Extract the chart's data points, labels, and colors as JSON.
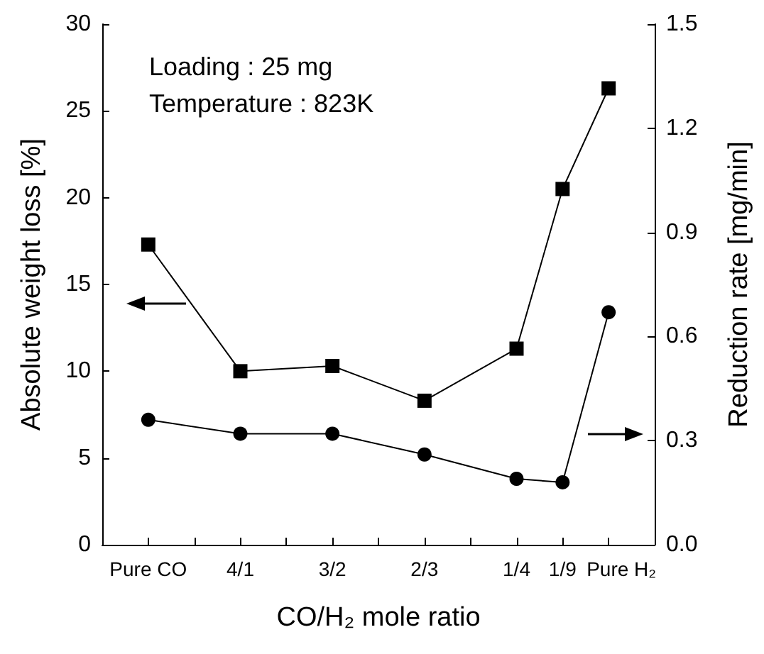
{
  "chart_data": {
    "type": "line",
    "xlabel": "CO/H₂ mole ratio",
    "ylabel": "Absolute weight loss [%]",
    "y2label": "Reduction rate [mg/min]",
    "annotations": [
      "Loading : 25 mg",
      "Temperature : 823K"
    ],
    "categories": [
      null,
      "Pure CO",
      null,
      "4/1",
      null,
      "3/2",
      null,
      "2/3",
      null,
      "1/4",
      "1/9",
      "Pure H₂",
      null
    ],
    "series": [
      {
        "color": "#000000",
        "marker": "square",
        "values": [
          null,
          17.3,
          null,
          10.0,
          null,
          10.3,
          null,
          8.3,
          null,
          11.3,
          20.5,
          26.3,
          null
        ]
      },
      {
        "color": "#000000",
        "marker": "circle",
        "axis": "y2",
        "values": [
          null,
          0.36,
          null,
          0.32,
          null,
          0.32,
          null,
          0.26,
          null,
          0.19,
          0.18,
          0.67,
          null
        ]
      }
    ],
    "ylim": [
      0,
      30
    ],
    "yticks": [
      0,
      5,
      10,
      15,
      20,
      25,
      30
    ],
    "y2lim": [
      0,
      1.5
    ],
    "y2ticks": [
      {
        "value": 0,
        "label": "0.0"
      },
      {
        "value": 0.3,
        "label": "0.3"
      },
      {
        "value": 0.6,
        "label": "0.6"
      },
      {
        "value": 0.9,
        "label": "0.9"
      },
      {
        "value": 1.2,
        "label": "1.2"
      },
      {
        "value": 1.5,
        "label": "1.5"
      }
    ],
    "grid": false,
    "line_style": "solid"
  }
}
